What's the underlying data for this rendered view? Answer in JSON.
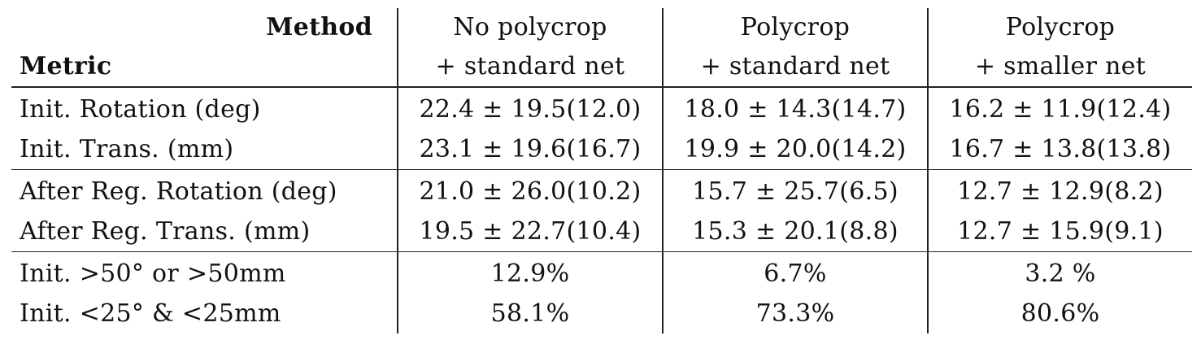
{
  "table": {
    "header": {
      "method_label": "Method",
      "metric_label": "Metric",
      "columns": [
        {
          "line1": "No polycrop",
          "line2": "+ standard net"
        },
        {
          "line1": "Polycrop",
          "line2": "+ standard net"
        },
        {
          "line1": "Polycrop",
          "line2": "+ smaller net"
        }
      ]
    },
    "groups": [
      {
        "rows": [
          {
            "metric": "Init. Rotation (deg)",
            "values": [
              "22.4 ± 19.5(12.0)",
              "18.0 ± 14.3(14.7)",
              "16.2 ± 11.9(12.4)"
            ]
          },
          {
            "metric": "Init. Trans. (mm)",
            "values": [
              "23.1 ± 19.6(16.7)",
              "19.9 ± 20.0(14.2)",
              "16.7 ± 13.8(13.8)"
            ]
          }
        ]
      },
      {
        "rows": [
          {
            "metric": "After Reg. Rotation (deg)",
            "values": [
              "21.0 ± 26.0(10.2)",
              "15.7 ± 25.7(6.5)",
              "12.7 ± 12.9(8.2)"
            ]
          },
          {
            "metric": "After Reg. Trans. (mm)",
            "values": [
              "19.5 ± 22.7(10.4)",
              "15.3 ± 20.1(8.8)",
              "12.7 ± 15.9(9.1)"
            ]
          }
        ]
      },
      {
        "rows": [
          {
            "metric": "Init. >50° or >50mm",
            "values": [
              "12.9%",
              "6.7%",
              "3.2 %"
            ]
          },
          {
            "metric": "Init. <25° & <25mm",
            "values": [
              "58.1%",
              "73.3%",
              "80.6%"
            ]
          }
        ]
      }
    ]
  }
}
